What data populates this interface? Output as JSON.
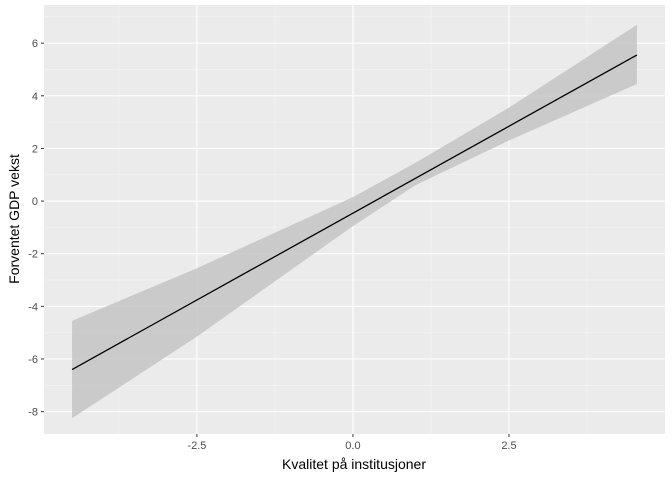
{
  "chart_data": {
    "type": "line",
    "title": "",
    "xlabel": "Kvalitet på institusjoner",
    "ylabel": "Forventet GDP vekst",
    "xlim": [
      -4.95,
      5.0
    ],
    "ylim": [
      -8.85,
      7.45
    ],
    "x_ticks": [
      -2.5,
      0.0,
      2.5
    ],
    "x_tick_labels": [
      "-2.5",
      "0.0",
      "2.5"
    ],
    "y_ticks": [
      -8,
      -6,
      -4,
      -2,
      0,
      2,
      4,
      6
    ],
    "y_tick_labels": [
      "-8",
      "-6",
      "-4",
      "-2",
      "0",
      "2",
      "4",
      "6"
    ],
    "grid": true,
    "series": [
      {
        "x": [
          -4.5,
          4.55
        ],
        "y": [
          -6.4,
          5.55
        ],
        "ci_x": [
          -4.5,
          -2.5,
          0.0,
          1.0,
          2.5,
          4.55
        ],
        "ci_lower": [
          -8.25,
          -5.15,
          -0.95,
          0.6,
          2.3,
          4.45
        ],
        "ci_upper": [
          -4.55,
          -2.55,
          0.15,
          1.45,
          3.55,
          6.7
        ]
      }
    ],
    "colors": {
      "panel": "#ebebeb",
      "grid_major": "#ffffff",
      "grid_minor": "#f5f5f5",
      "line": "#000000",
      "ribbon": "#c4c4c4"
    }
  }
}
